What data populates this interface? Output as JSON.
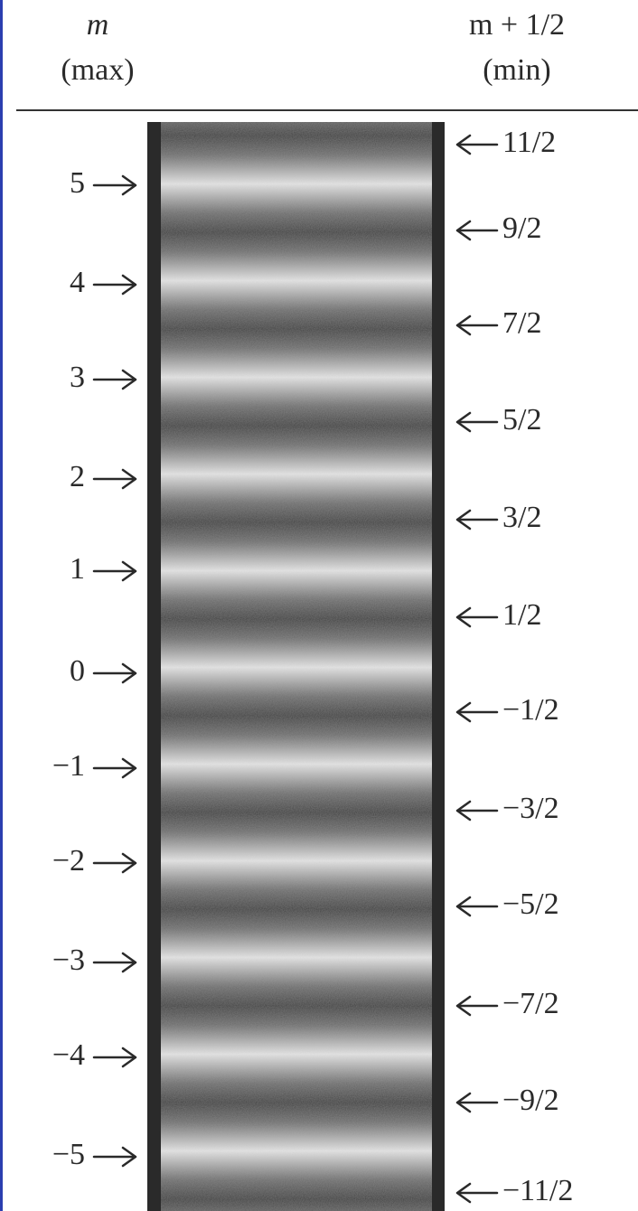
{
  "header": {
    "left_symbol": "m",
    "left_label": "(max)",
    "right_symbol": "m + 1/2",
    "right_label": "(min)"
  },
  "maxima": [
    "5",
    "4",
    "3",
    "2",
    "1",
    "0",
    "−1",
    "−2",
    "−3",
    "−4",
    "−5"
  ],
  "minima": [
    "11/2",
    "9/2",
    "7/2",
    "5/2",
    "3/2",
    "1/2",
    "−1/2",
    "−3/2",
    "−5/2",
    "−7/2",
    "−9/2",
    "−11/2"
  ]
}
